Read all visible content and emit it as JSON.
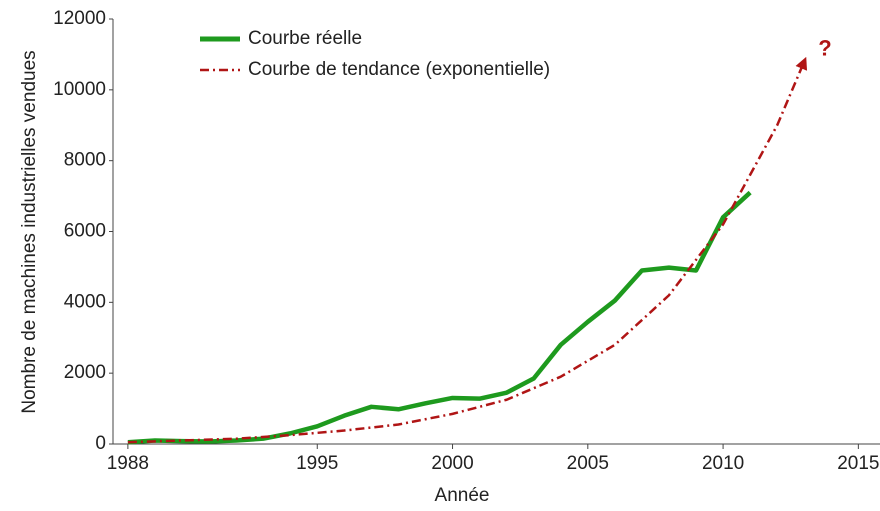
{
  "chart_data": {
    "type": "line",
    "y_label": "Nombre de machines industrielles vendues",
    "x_label": "Année",
    "annotation": "?",
    "xlim": [
      1987.45,
      2015.8
    ],
    "xticks": [
      1988,
      1995,
      2000,
      2005,
      2010,
      2015
    ],
    "ylim": [
      0,
      12000
    ],
    "yticks": [
      0,
      2000,
      4000,
      6000,
      8000,
      10000,
      12000
    ],
    "grid": false,
    "legend": "top-left",
    "series": [
      {
        "name": "Courbe réelle",
        "color": "#1e9a1e",
        "style": "solid",
        "x": [
          1988,
          1989,
          1990,
          1991,
          1992,
          1993,
          1994,
          1995,
          1996,
          1997,
          1998,
          1999,
          2000,
          2001,
          2002,
          2003,
          2004,
          2005,
          2006,
          2007,
          2008,
          2009,
          2010,
          2011
        ],
        "values": [
          50,
          100,
          80,
          70,
          100,
          150,
          300,
          500,
          800,
          1050,
          980,
          1150,
          1300,
          1280,
          1450,
          1850,
          2800,
          3450,
          4050,
          4900,
          4980,
          4900,
          6400,
          7100
        ]
      },
      {
        "name": "Courbe de tendance (exponentielle)",
        "color": "#b01515",
        "style": "dashdot",
        "x": [
          1988,
          1990,
          1992,
          1994,
          1996,
          1998,
          2000,
          2002,
          2004,
          2006,
          2008,
          2010,
          2012,
          2013
        ],
        "values": [
          50,
          100,
          150,
          250,
          380,
          550,
          850,
          1250,
          1900,
          2800,
          4200,
          6200,
          9000,
          10800
        ]
      }
    ]
  }
}
